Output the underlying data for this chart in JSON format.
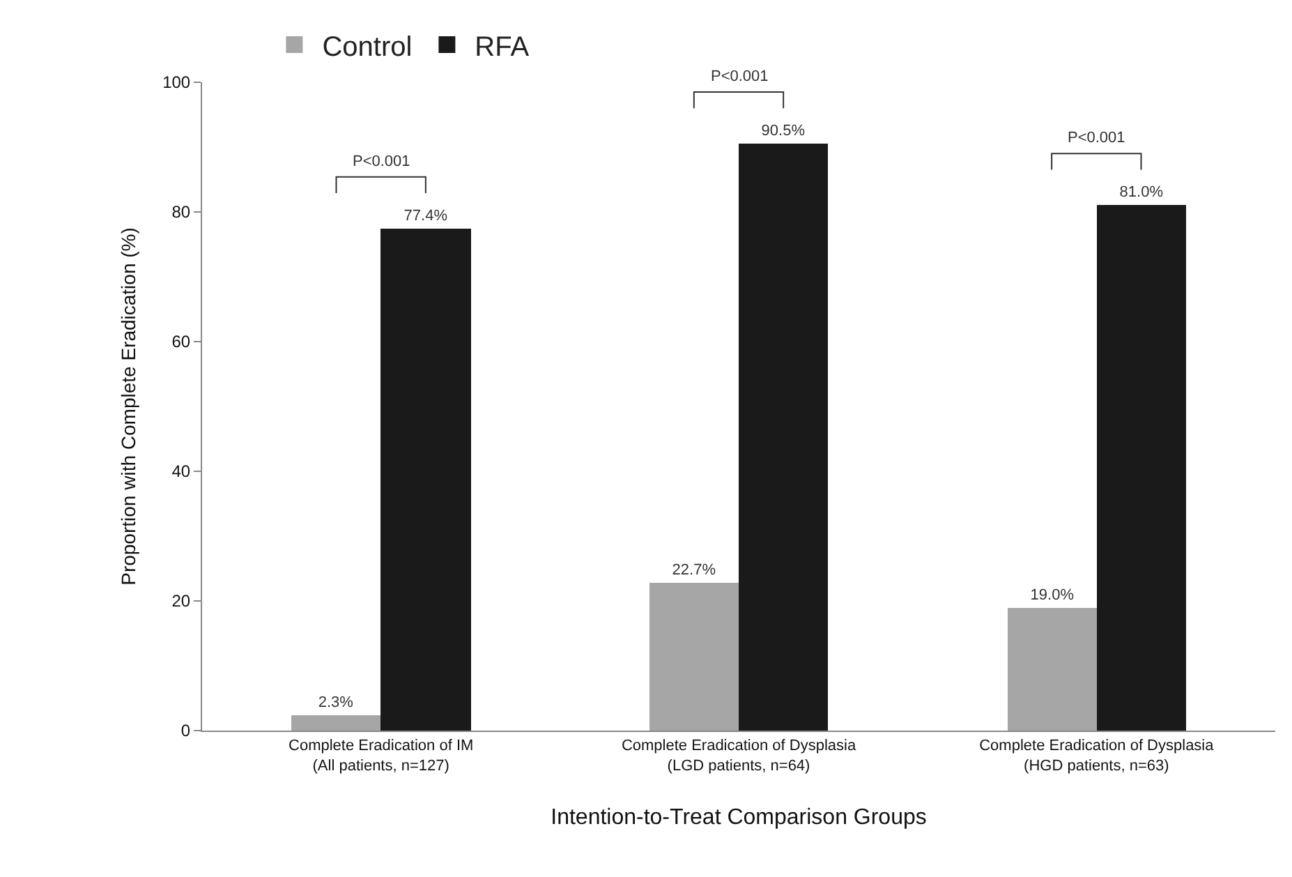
{
  "chart_data": {
    "type": "bar",
    "xlabel": "Intention-to-Treat Comparison Groups",
    "ylabel": "Proportion with Complete Eradication (%)",
    "categories": [
      "Complete Eradication of IM\n(All patients, n=127)",
      "Complete Eradication of Dysplasia\n(LGD patients, n=64)",
      "Complete Eradication of Dysplasia\n(HGD patients, n=63)"
    ],
    "series": [
      {
        "name": "Control",
        "color": "#a6a6a6",
        "values": [
          2.3,
          22.7,
          19.0
        ],
        "value_labels": [
          "2.3%",
          "22.7%",
          "19.0%"
        ]
      },
      {
        "name": "RFA",
        "color": "#1a1a1a",
        "values": [
          77.4,
          90.5,
          81.0
        ],
        "value_labels": [
          "77.4%",
          "90.5%",
          "81.0%"
        ]
      }
    ],
    "annotations": [
      "P<0.001",
      "P<0.001",
      "P<0.001"
    ],
    "ylim": [
      0,
      100
    ],
    "yticks": [
      0,
      20,
      40,
      60,
      80,
      100
    ],
    "legend": "top left"
  }
}
